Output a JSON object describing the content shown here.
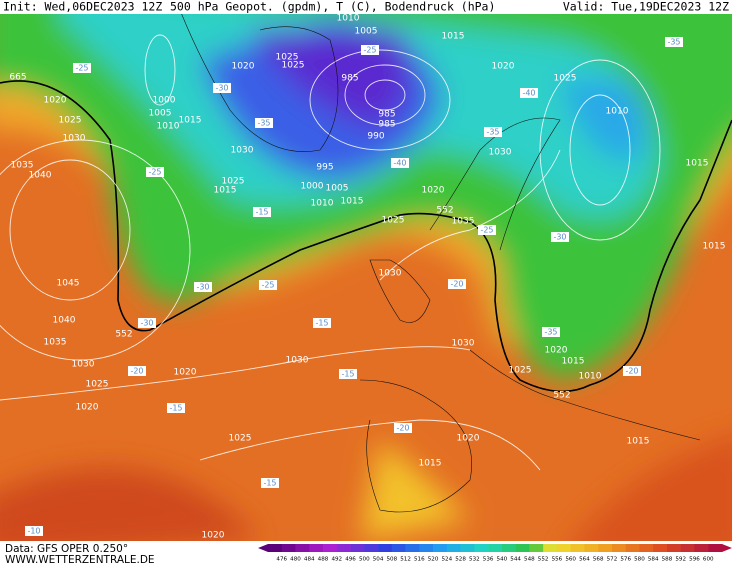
{
  "header": {
    "init": "Init: Wed,06DEC2023 12Z",
    "title": "500 hPa Geopot. (gpdm), T (C), Bodendruck (hPa)",
    "valid": "Valid: Tue,19DEC2023 12Z"
  },
  "footer": {
    "source": "Data: GFS OPER 0.250°",
    "website": "WWW.WETTERZENTRALE.DE"
  },
  "colorbar": {
    "labels": [
      476,
      480,
      484,
      488,
      492,
      496,
      500,
      504,
      508,
      512,
      516,
      520,
      524,
      528,
      532,
      536,
      540,
      544,
      548,
      552,
      556,
      560,
      564,
      568,
      572,
      576,
      580,
      584,
      588,
      592,
      596,
      600
    ]
  },
  "map": {
    "pressure_labels": [
      "1010",
      "1005",
      "1015",
      "1020",
      "1025",
      "1025",
      "985",
      "1020",
      "1025",
      "1000",
      "1005",
      "1010",
      "1015",
      "1010",
      "985",
      "985",
      "990",
      "1030",
      "995",
      "1015",
      "1030",
      "1040",
      "1035",
      "1000",
      "1005",
      "1025",
      "1015",
      "1010",
      "1015",
      "1020",
      "1025",
      "1035",
      "1015",
      "1030",
      "1045",
      "1040",
      "1035",
      "1030",
      "1025",
      "1020",
      "1030",
      "1030",
      "1020",
      "1015",
      "1025",
      "1010",
      "1020",
      "1025",
      "1020",
      "1015",
      "1015",
      "1020",
      "1020",
      "1025",
      "1030"
    ],
    "contour_labels": [
      "665",
      "552",
      "552",
      "552"
    ],
    "temperature_labels": [
      "-25",
      "-30",
      "-35",
      "-35",
      "-40",
      "-35",
      "-25",
      "-30",
      "-25",
      "-15",
      "-30",
      "-25",
      "-20",
      "-30",
      "-15",
      "-15",
      "-20",
      "-15",
      "-20",
      "-15",
      "-10",
      "-35",
      "-20",
      "-40",
      "-25"
    ]
  }
}
